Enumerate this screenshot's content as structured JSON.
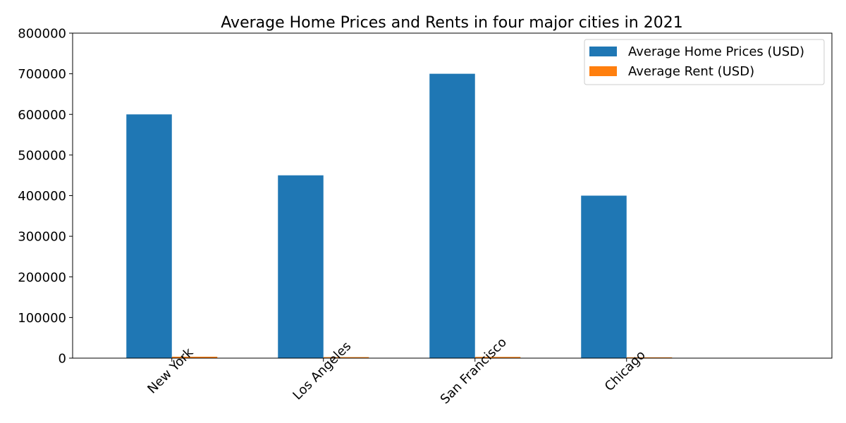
{
  "chart_data": {
    "type": "bar",
    "title": "Average Home Prices and Rents in four major cities in 2021",
    "xlabel": "",
    "ylabel": "",
    "categories": [
      "New York",
      "Los Angeles",
      "San Francisco",
      "Chicago"
    ],
    "series": [
      {
        "name": "Average Home Prices (USD)",
        "values": [
          600000,
          450000,
          700000,
          400000
        ],
        "color": "#1f77b4"
      },
      {
        "name": "Average Rent (USD)",
        "values": [
          3500,
          2500,
          3000,
          2000
        ],
        "color": "#ff7f0e"
      }
    ],
    "ylim": [
      0,
      800000
    ],
    "yticks": [
      "0",
      "100000",
      "200000",
      "300000",
      "400000",
      "500000",
      "600000",
      "700000",
      "800000"
    ],
    "grid": false,
    "legend_position": "top-right"
  }
}
